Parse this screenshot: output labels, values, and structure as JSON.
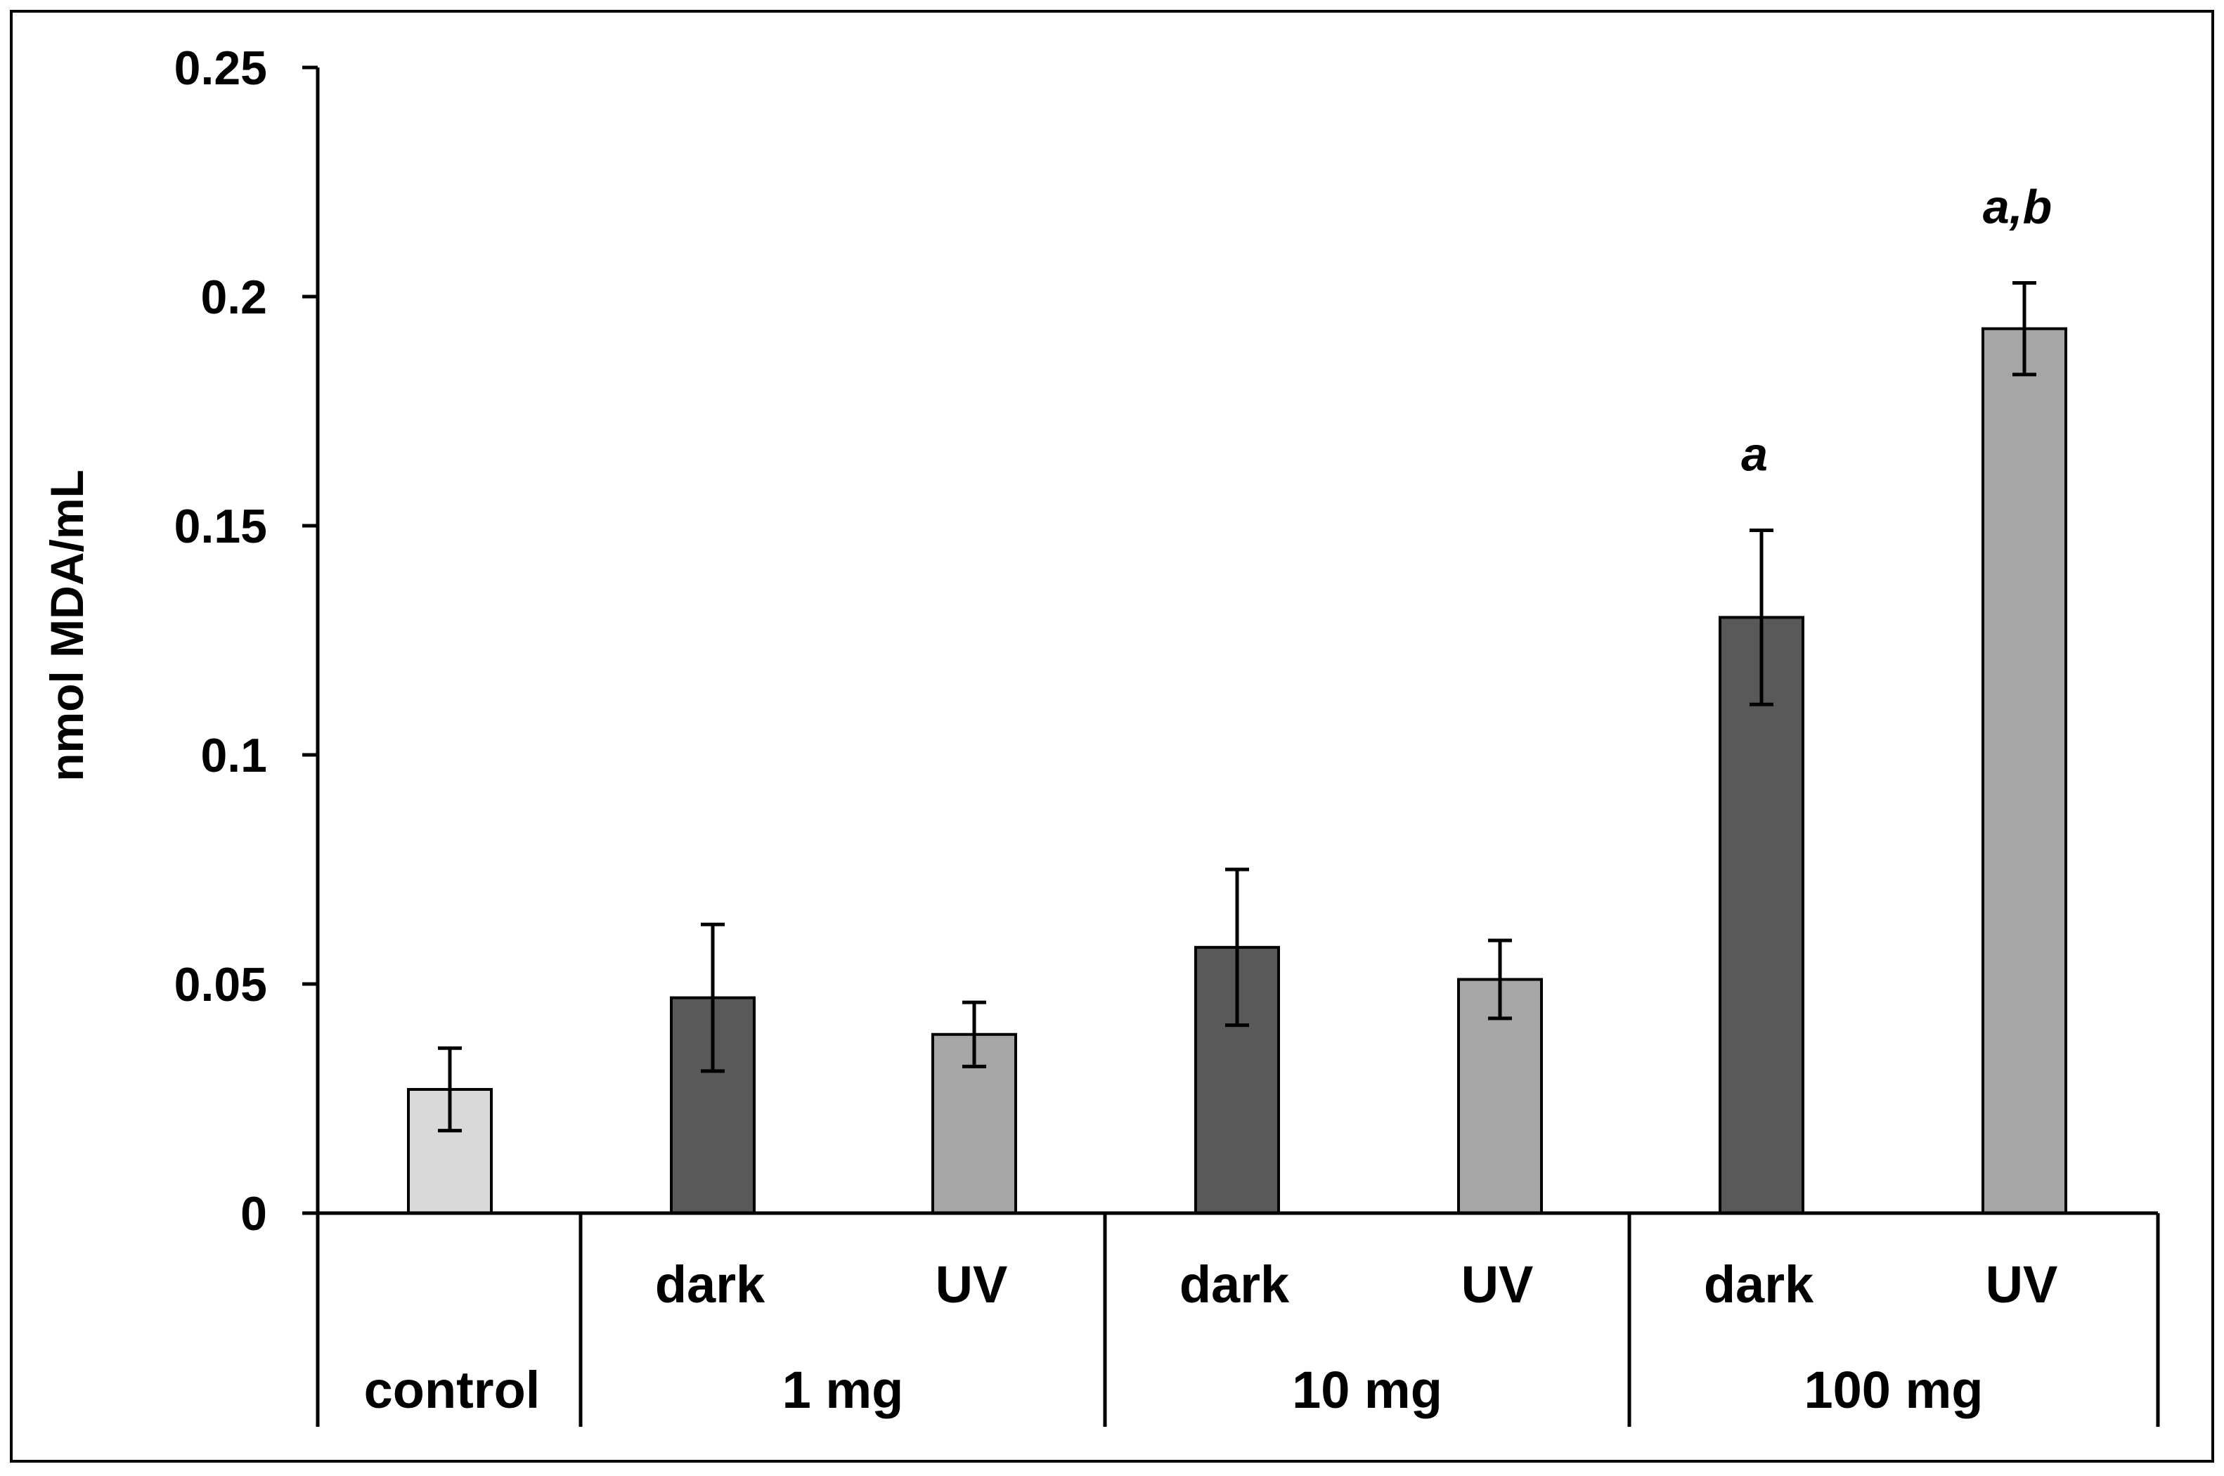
{
  "chart_data": {
    "type": "bar",
    "title": "",
    "ylabel": "nmol MDA/mL",
    "xlabel": "",
    "ylim": [
      0,
      0.25
    ],
    "yticks": [
      "0",
      "0.05",
      "0.1",
      "0.15",
      "0.2",
      "0.25"
    ],
    "ytick_values": [
      0,
      0.05,
      0.1,
      0.15,
      0.2,
      0.25
    ],
    "grid": false,
    "bars": [
      {
        "group": "control",
        "condition": "",
        "value": 0.027,
        "error": 0.009,
        "color": "#d9d9d9",
        "annotation": ""
      },
      {
        "group": "1 mg",
        "condition": "dark",
        "value": 0.047,
        "error": 0.016,
        "color": "#595959",
        "annotation": ""
      },
      {
        "group": "1 mg",
        "condition": "UV",
        "value": 0.039,
        "error": 0.007,
        "color": "#a6a6a6",
        "annotation": ""
      },
      {
        "group": "10 mg",
        "condition": "dark",
        "value": 0.058,
        "error": 0.017,
        "color": "#595959",
        "annotation": ""
      },
      {
        "group": "10 mg",
        "condition": "UV",
        "value": 0.051,
        "error": 0.0085,
        "color": "#a6a6a6",
        "annotation": ""
      },
      {
        "group": "100 mg",
        "condition": "dark",
        "value": 0.13,
        "error": 0.019,
        "color": "#595959",
        "annotation": "a"
      },
      {
        "group": "100 mg",
        "condition": "UV",
        "value": 0.193,
        "error": 0.01,
        "color": "#a6a6a6",
        "annotation": "a,b"
      }
    ],
    "groups": [
      "control",
      "1 mg",
      "10 mg",
      "100 mg"
    ],
    "conditions": [
      "dark",
      "UV"
    ]
  }
}
